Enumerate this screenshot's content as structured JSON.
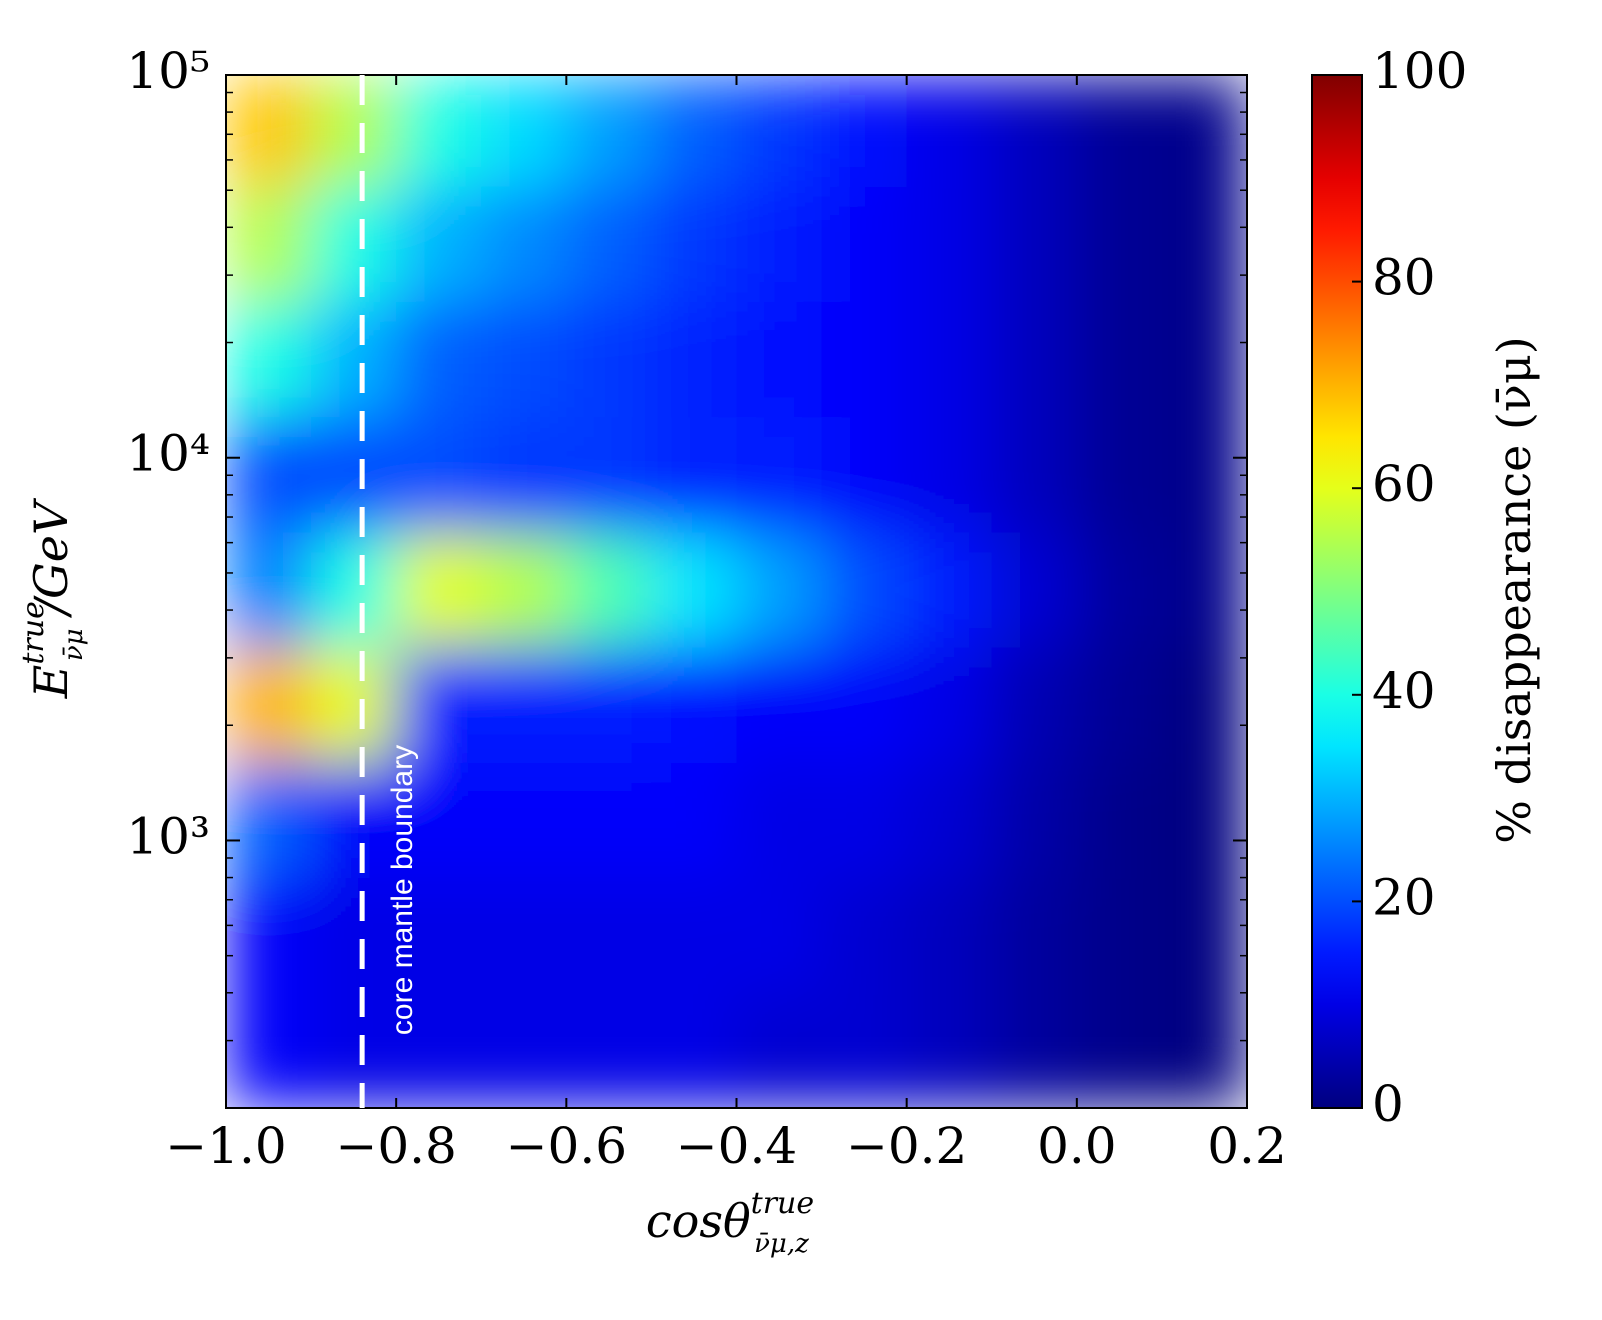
{
  "chart_data": {
    "type": "heatmap",
    "x_label": {
      "base": "cosθ",
      "sup": "true",
      "sub": "ν̄μ,z"
    },
    "y_label": {
      "base": "E",
      "sup": "true",
      "sub": "ν̄μ",
      "rest": "/GeV"
    },
    "colorbar_label": "% disappearance (ν̄μ)",
    "colorscale": "jet",
    "clim": [
      0,
      100
    ],
    "cticks": [
      0,
      20,
      40,
      60,
      80,
      100
    ],
    "xlim": [
      -1.0,
      0.2
    ],
    "xticks": [
      {
        "value": -1.0,
        "label": "−1.0"
      },
      {
        "value": -0.8,
        "label": "−0.8"
      },
      {
        "value": -0.6,
        "label": "−0.6"
      },
      {
        "value": -0.4,
        "label": "−0.4"
      },
      {
        "value": -0.2,
        "label": "−0.2"
      },
      {
        "value": 0.0,
        "label": "0.0"
      },
      0.2
    ],
    "ylim": [
      200,
      100000
    ],
    "y_log": true,
    "yticks": [
      {
        "value": 1000,
        "label": "10³"
      },
      {
        "value": 10000,
        "label": "10⁴"
      },
      {
        "value": 100000,
        "label": "10⁵"
      }
    ],
    "x_edges": [
      -1.0,
      -0.9,
      -0.8,
      -0.7,
      -0.6,
      -0.5,
      -0.4,
      -0.3,
      -0.2,
      -0.1,
      0.0,
      0.1,
      0.2
    ],
    "y_edges": [
      200,
      400,
      800,
      1600,
      3200,
      6400,
      12800,
      25600,
      51200,
      100000
    ],
    "z": [
      [
        12,
        10,
        10,
        10,
        10,
        10,
        8,
        8,
        6,
        3,
        1,
        0
      ],
      [
        12,
        10,
        10,
        10,
        10,
        10,
        10,
        8,
        6,
        3,
        1,
        0
      ],
      [
        22,
        12,
        12,
        12,
        12,
        12,
        10,
        10,
        8,
        4,
        1,
        0
      ],
      [
        70,
        60,
        15,
        15,
        15,
        14,
        12,
        12,
        10,
        5,
        2,
        0
      ],
      [
        25,
        40,
        60,
        55,
        45,
        35,
        28,
        20,
        15,
        8,
        3,
        1
      ],
      [
        20,
        20,
        20,
        18,
        18,
        16,
        15,
        12,
        10,
        6,
        2,
        1
      ],
      [
        40,
        30,
        22,
        20,
        18,
        16,
        14,
        12,
        10,
        6,
        2,
        1
      ],
      [
        55,
        40,
        30,
        26,
        22,
        18,
        15,
        12,
        10,
        6,
        2,
        1
      ],
      [
        68,
        55,
        40,
        34,
        28,
        22,
        18,
        14,
        10,
        6,
        2,
        1
      ]
    ],
    "boundary_x": -0.84,
    "annotation": "core mantle boundary",
    "boundary_color": "#ffffff"
  }
}
